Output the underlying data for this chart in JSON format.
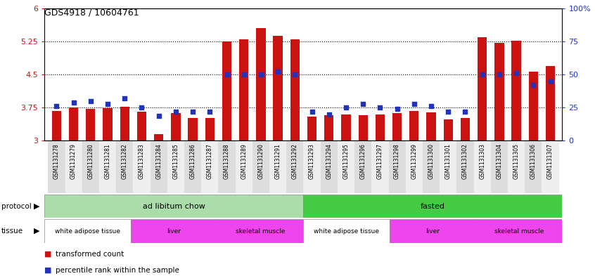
{
  "title": "GDS4918 / 10604761",
  "samples": [
    "GSM1131278",
    "GSM1131279",
    "GSM1131280",
    "GSM1131281",
    "GSM1131282",
    "GSM1131283",
    "GSM1131284",
    "GSM1131285",
    "GSM1131286",
    "GSM1131287",
    "GSM1131288",
    "GSM1131289",
    "GSM1131290",
    "GSM1131291",
    "GSM1131292",
    "GSM1131293",
    "GSM1131294",
    "GSM1131295",
    "GSM1131296",
    "GSM1131297",
    "GSM1131298",
    "GSM1131299",
    "GSM1131300",
    "GSM1131301",
    "GSM1131302",
    "GSM1131303",
    "GSM1131304",
    "GSM1131305",
    "GSM1131306",
    "GSM1131307"
  ],
  "red_values": [
    3.68,
    3.75,
    3.72,
    3.74,
    3.77,
    3.66,
    3.15,
    3.62,
    3.52,
    3.52,
    5.25,
    5.3,
    5.55,
    5.38,
    5.3,
    3.55,
    3.58,
    3.6,
    3.58,
    3.6,
    3.62,
    3.68,
    3.64,
    3.48,
    3.52,
    5.35,
    5.22,
    5.27,
    4.57,
    4.7
  ],
  "blue_percentiles": [
    26,
    29,
    30,
    28,
    32,
    25,
    19,
    22,
    22,
    22,
    50,
    50,
    50,
    52,
    50,
    22,
    20,
    25,
    28,
    25,
    24,
    28,
    26,
    22,
    22,
    50,
    50,
    51,
    42,
    45
  ],
  "ylim_left": [
    3,
    6
  ],
  "ylim_right": [
    0,
    100
  ],
  "yticks_left": [
    3,
    3.75,
    4.5,
    5.25,
    6
  ],
  "yticks_right": [
    0,
    25,
    50,
    75,
    100
  ],
  "hlines": [
    3.75,
    4.5,
    5.25
  ],
  "bar_color": "#cc1111",
  "blue_color": "#2233bb",
  "bar_width": 0.55,
  "protocol_groups": [
    {
      "label": "ad libitum chow",
      "start": 0,
      "end": 14,
      "color": "#aaddaa"
    },
    {
      "label": "fasted",
      "start": 15,
      "end": 29,
      "color": "#44cc44"
    }
  ],
  "tissue_groups": [
    {
      "label": "white adipose tissue",
      "start": 0,
      "end": 4,
      "color": "#ffffff"
    },
    {
      "label": "liver",
      "start": 5,
      "end": 9,
      "color": "#ee44ee"
    },
    {
      "label": "skeletal muscle",
      "start": 10,
      "end": 14,
      "color": "#ee44ee"
    },
    {
      "label": "white adipose tissue",
      "start": 15,
      "end": 19,
      "color": "#ffffff"
    },
    {
      "label": "liver",
      "start": 20,
      "end": 24,
      "color": "#ee44ee"
    },
    {
      "label": "skeletal muscle",
      "start": 25,
      "end": 29,
      "color": "#ee44ee"
    }
  ],
  "legend_bar_label": "transformed count",
  "legend_dot_label": "percentile rank within the sample",
  "protocol_label": "protocol",
  "tissue_label": "tissue",
  "left_axis_color": "#cc1111",
  "right_axis_color": "#2233bb",
  "xtick_bg_odd": "#dddddd",
  "xtick_bg_even": "#eeeeee"
}
